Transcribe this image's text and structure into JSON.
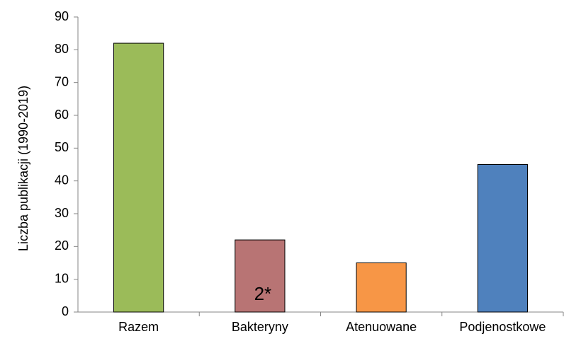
{
  "chart_data": {
    "type": "bar",
    "y_label": "Liczba publikacji (1990-2019)",
    "categories": [
      "Razem",
      "Bakteryny",
      "Atenuowane",
      "Podjenostkowe"
    ],
    "values": [
      82,
      22,
      15,
      45
    ],
    "colors": [
      "#9bbb59",
      "#b87474",
      "#f79646",
      "#4f81bd"
    ],
    "annotations": [
      {
        "text": "2*",
        "category": "Bakteryny"
      }
    ],
    "ylim": [
      0,
      90
    ],
    "yticks": [
      0,
      10,
      20,
      30,
      40,
      50,
      60,
      70,
      80,
      90
    ],
    "grid": false
  }
}
